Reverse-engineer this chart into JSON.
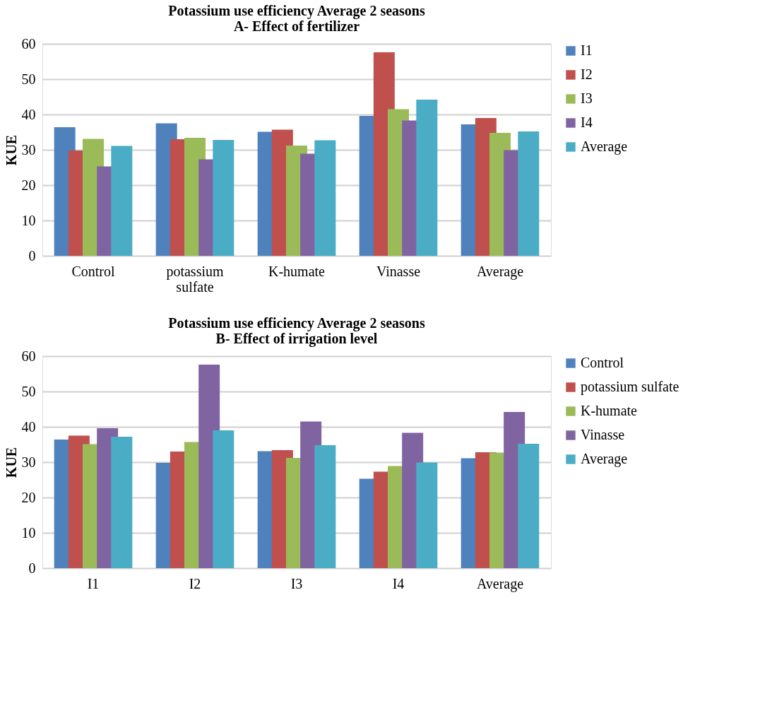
{
  "chart_data": [
    {
      "type": "bar",
      "title": "Potassium use efficiency Average 2 seasons\nA- Effect of fertilizer",
      "ylabel": "KUE",
      "categories": [
        "Control",
        "potassium sulfate",
        "K-humate",
        "Vinasse",
        "Average"
      ],
      "series": [
        {
          "name": "I1",
          "color": "#4f81bd",
          "values": [
            36.4,
            37.5,
            35.1,
            39.6,
            37.2
          ]
        },
        {
          "name": "I2",
          "color": "#c0504d",
          "values": [
            29.8,
            33.0,
            35.7,
            57.6,
            39.0
          ]
        },
        {
          "name": "I3",
          "color": "#9bbb59",
          "values": [
            33.1,
            33.4,
            31.2,
            41.5,
            34.8
          ]
        },
        {
          "name": "I4",
          "color": "#8064a2",
          "values": [
            25.3,
            27.3,
            28.9,
            38.3,
            29.9
          ]
        },
        {
          "name": "Average",
          "color": "#4bacc6",
          "values": [
            31.1,
            32.8,
            32.7,
            44.2,
            35.2
          ]
        }
      ],
      "ylim": [
        0,
        60
      ],
      "yticks": [
        0,
        10,
        20,
        30,
        40,
        50,
        60
      ],
      "grid": "y",
      "legend": "right"
    },
    {
      "type": "bar",
      "title": "Potassium use efficiency Average 2 seasons\nB- Effect of irrigation level",
      "ylabel": "KUE",
      "categories": [
        "I1",
        "I2",
        "I3",
        "I4",
        "Average"
      ],
      "series": [
        {
          "name": "Control",
          "color": "#4f81bd",
          "values": [
            36.4,
            29.8,
            33.1,
            25.3,
            31.1
          ]
        },
        {
          "name": "potassium sulfate",
          "color": "#c0504d",
          "values": [
            37.5,
            33.0,
            33.4,
            27.3,
            32.8
          ]
        },
        {
          "name": "K-humate",
          "color": "#9bbb59",
          "values": [
            35.1,
            35.7,
            31.2,
            28.9,
            32.7
          ]
        },
        {
          "name": "Vinasse",
          "color": "#8064a2",
          "values": [
            39.6,
            57.6,
            41.5,
            38.3,
            44.2
          ]
        },
        {
          "name": "Average",
          "color": "#4bacc6",
          "values": [
            37.2,
            39.0,
            34.8,
            29.9,
            35.2
          ]
        }
      ],
      "ylim": [
        0,
        60
      ],
      "yticks": [
        0,
        10,
        20,
        30,
        40,
        50,
        60
      ],
      "grid": "y",
      "legend": "right"
    }
  ]
}
